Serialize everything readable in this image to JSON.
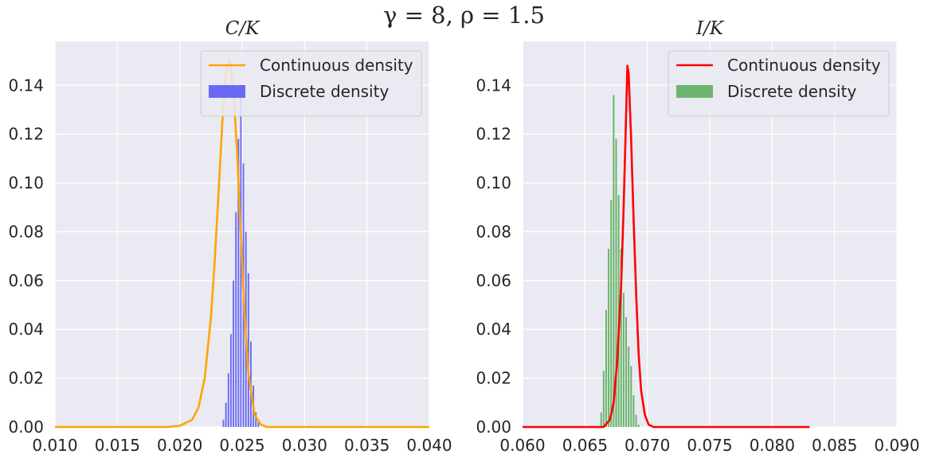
{
  "figure": {
    "suptitle": "γ = 8, ρ = 1.5"
  },
  "chart_data": [
    {
      "type": "line+histogram",
      "title": "C/K",
      "xlabel": "",
      "ylabel": "",
      "xlim": [
        0.01,
        0.04
      ],
      "ylim": [
        0.0,
        0.158
      ],
      "xticks": [
        "0.010",
        "0.015",
        "0.020",
        "0.025",
        "0.030",
        "0.035",
        "0.040"
      ],
      "yticks": [
        "0.00",
        "0.02",
        "0.04",
        "0.06",
        "0.08",
        "0.10",
        "0.12",
        "0.14"
      ],
      "grid": true,
      "legend": {
        "position": "top-right",
        "entries": [
          "Continuous density",
          "Discrete density"
        ]
      },
      "series": [
        {
          "name": "Continuous density",
          "kind": "line",
          "color": "#FFA500",
          "x": [
            0.01,
            0.019,
            0.02,
            0.021,
            0.0215,
            0.022,
            0.0225,
            0.0228,
            0.0231,
            0.0234,
            0.0237,
            0.024,
            0.0243,
            0.0246,
            0.0249,
            0.0252,
            0.0255,
            0.026,
            0.0265,
            0.027,
            0.028,
            0.04
          ],
          "y": [
            0.0,
            0.0,
            0.0005,
            0.003,
            0.008,
            0.02,
            0.045,
            0.068,
            0.095,
            0.124,
            0.146,
            0.15,
            0.138,
            0.112,
            0.078,
            0.045,
            0.022,
            0.005,
            0.001,
            0.0,
            0.0,
            0.0
          ]
        },
        {
          "name": "Discrete density",
          "kind": "bar",
          "color": "#5B5BF5",
          "x": [
            0.0235,
            0.0237,
            0.0239,
            0.0241,
            0.0243,
            0.0245,
            0.0247,
            0.0249,
            0.0251,
            0.0253,
            0.0255,
            0.0257,
            0.0259,
            0.0261,
            0.0263
          ],
          "y": [
            0.003,
            0.01,
            0.022,
            0.038,
            0.06,
            0.088,
            0.118,
            0.14,
            0.108,
            0.08,
            0.063,
            0.035,
            0.017,
            0.006,
            0.002
          ],
          "bar_width": 0.00012
        }
      ]
    },
    {
      "type": "line+histogram",
      "title": "I/K",
      "xlabel": "",
      "ylabel": "",
      "xlim": [
        0.06,
        0.09
      ],
      "ylim": [
        0.0,
        0.158
      ],
      "xticks": [
        "0.060",
        "0.065",
        "0.070",
        "0.075",
        "0.080",
        "0.085",
        "0.090"
      ],
      "yticks": [
        "0.00",
        "0.02",
        "0.04",
        "0.06",
        "0.08",
        "0.10",
        "0.12",
        "0.14"
      ],
      "grid": true,
      "legend": {
        "position": "top-right",
        "entries": [
          "Continuous density",
          "Discrete density"
        ]
      },
      "series": [
        {
          "name": "Continuous density",
          "kind": "line",
          "color": "#FF0000",
          "x": [
            0.06,
            0.0665,
            0.067,
            0.0673,
            0.0676,
            0.0679,
            0.0681,
            0.0683,
            0.0684,
            0.0685,
            0.0687,
            0.0689,
            0.0691,
            0.0693,
            0.0695,
            0.0698,
            0.0701,
            0.0705,
            0.071,
            0.083
          ],
          "y": [
            0.0,
            0.0,
            0.003,
            0.01,
            0.028,
            0.058,
            0.09,
            0.128,
            0.148,
            0.145,
            0.118,
            0.085,
            0.055,
            0.03,
            0.015,
            0.005,
            0.001,
            0.0,
            0.0,
            0.0
          ],
          "x_end": 0.083
        },
        {
          "name": "Discrete density",
          "kind": "bar",
          "color": "#5FAF5F",
          "x": [
            0.0663,
            0.0665,
            0.0667,
            0.0669,
            0.0671,
            0.0673,
            0.0675,
            0.0677,
            0.0679,
            0.0681,
            0.0683,
            0.0685,
            0.0687,
            0.0689,
            0.0691,
            0.0693
          ],
          "y": [
            0.006,
            0.023,
            0.048,
            0.073,
            0.093,
            0.136,
            0.118,
            0.095,
            0.073,
            0.055,
            0.045,
            0.033,
            0.025,
            0.013,
            0.005,
            0.001
          ],
          "bar_width": 0.00013
        }
      ]
    }
  ]
}
